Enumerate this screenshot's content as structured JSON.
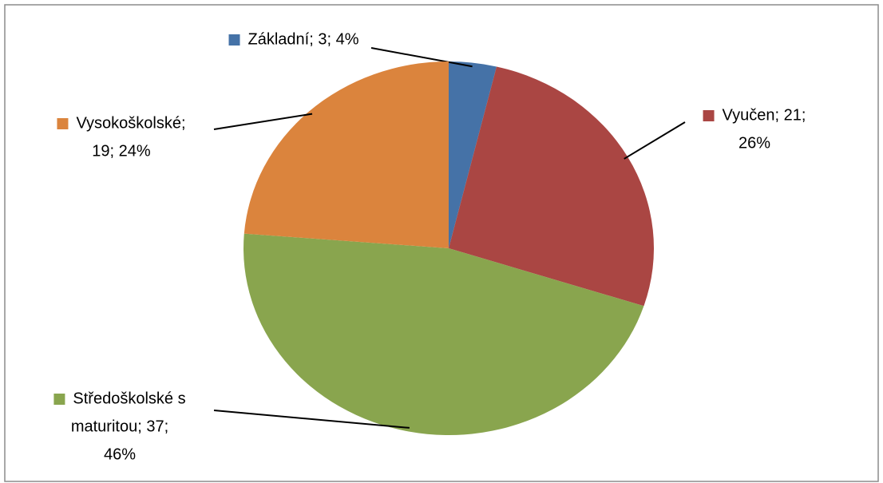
{
  "chart_data": {
    "type": "pie",
    "values": [
      3,
      21,
      37,
      19
    ],
    "value_labels": [
      [
        "Základní; 3; 4%"
      ],
      [
        "Vyučen; 21;",
        "26%"
      ],
      [
        "Středoškolské s",
        "maturitou; 37;",
        "46%"
      ],
      [
        "Vysokoškolské;",
        "19; 24%"
      ]
    ],
    "colors": [
      "#4572a7",
      "#aa4643",
      "#89a54e",
      "#db843d"
    ]
  }
}
